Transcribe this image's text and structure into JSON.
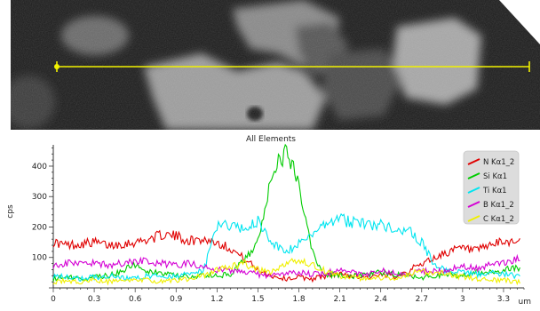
{
  "chart_data": {
    "type": "line",
    "title": "All Elements",
    "xlabel": "um",
    "ylabel": "cps",
    "xlim": [
      0,
      3.45
    ],
    "ylim": [
      0,
      470
    ],
    "xticks": [
      "0",
      "0.3",
      "0.6",
      "0.9",
      "1.2",
      "1.5",
      "1.8",
      "2.1",
      "2.4",
      "2.7",
      "3",
      "3.3"
    ],
    "yticks": [
      "100",
      "200",
      "300",
      "400"
    ],
    "grid": false,
    "legend_position": "top-right",
    "series": [
      {
        "name": "N Kα1_2",
        "color": "#e00000",
        "x": [
          0,
          0.1,
          0.2,
          0.3,
          0.4,
          0.5,
          0.6,
          0.7,
          0.8,
          0.9,
          1.0,
          1.1,
          1.2,
          1.3,
          1.4,
          1.5,
          1.6,
          1.7,
          1.8,
          1.9,
          2.0,
          2.1,
          2.2,
          2.3,
          2.4,
          2.5,
          2.6,
          2.7,
          2.8,
          2.9,
          3.0,
          3.1,
          3.2,
          3.3,
          3.4
        ],
        "y": [
          150,
          140,
          145,
          150,
          140,
          145,
          150,
          160,
          175,
          170,
          155,
          160,
          150,
          130,
          95,
          60,
          40,
          30,
          35,
          30,
          40,
          45,
          40,
          35,
          40,
          40,
          55,
          80,
          100,
          120,
          130,
          120,
          140,
          150,
          155
        ]
      },
      {
        "name": "Si Kα1",
        "color": "#00cc00",
        "x": [
          0,
          0.1,
          0.2,
          0.3,
          0.4,
          0.5,
          0.6,
          0.7,
          0.8,
          0.9,
          1.0,
          1.1,
          1.2,
          1.3,
          1.4,
          1.5,
          1.55,
          1.6,
          1.65,
          1.7,
          1.75,
          1.8,
          1.85,
          1.9,
          1.95,
          2.0,
          2.1,
          2.2,
          2.3,
          2.4,
          2.5,
          2.6,
          2.7,
          2.8,
          2.9,
          3.0,
          3.1,
          3.2,
          3.3,
          3.4
        ],
        "y": [
          30,
          35,
          30,
          35,
          40,
          55,
          75,
          55,
          45,
          40,
          35,
          40,
          40,
          45,
          90,
          150,
          250,
          370,
          420,
          440,
          410,
          330,
          230,
          120,
          70,
          45,
          40,
          40,
          45,
          50,
          45,
          40,
          35,
          40,
          45,
          40,
          50,
          55,
          60,
          65
        ]
      },
      {
        "name": "Ti Kα1",
        "color": "#00e5f0",
        "x": [
          0,
          0.1,
          0.2,
          0.3,
          0.4,
          0.5,
          0.6,
          0.7,
          0.8,
          0.9,
          1.0,
          1.1,
          1.2,
          1.3,
          1.4,
          1.5,
          1.6,
          1.7,
          1.8,
          1.85,
          1.9,
          2.0,
          2.1,
          2.2,
          2.3,
          2.4,
          2.5,
          2.6,
          2.7,
          2.8,
          2.9,
          3.0,
          3.1,
          3.2,
          3.3,
          3.4
        ],
        "y": [
          40,
          35,
          30,
          35,
          40,
          35,
          30,
          40,
          35,
          40,
          45,
          55,
          200,
          210,
          190,
          220,
          150,
          110,
          150,
          160,
          170,
          220,
          225,
          215,
          210,
          205,
          200,
          190,
          150,
          70,
          55,
          50,
          45,
          50,
          45,
          40
        ]
      },
      {
        "name": "B Kα1_2",
        "color": "#d400d4",
        "x": [
          0,
          0.1,
          0.2,
          0.3,
          0.4,
          0.5,
          0.6,
          0.7,
          0.8,
          0.9,
          1.0,
          1.1,
          1.2,
          1.3,
          1.4,
          1.5,
          1.6,
          1.7,
          1.8,
          1.9,
          2.0,
          2.1,
          2.2,
          2.3,
          2.4,
          2.5,
          2.6,
          2.7,
          2.8,
          2.9,
          3.0,
          3.1,
          3.2,
          3.3,
          3.4
        ],
        "y": [
          75,
          80,
          85,
          80,
          75,
          80,
          90,
          85,
          80,
          75,
          80,
          70,
          60,
          55,
          50,
          45,
          40,
          45,
          50,
          45,
          50,
          55,
          50,
          45,
          55,
          50,
          45,
          55,
          55,
          60,
          70,
          65,
          75,
          85,
          95
        ]
      },
      {
        "name": "C Kα1_2",
        "color": "#f0f000",
        "x": [
          0,
          0.1,
          0.2,
          0.3,
          0.4,
          0.5,
          0.6,
          0.7,
          0.8,
          0.9,
          1.0,
          1.1,
          1.2,
          1.3,
          1.4,
          1.5,
          1.6,
          1.7,
          1.8,
          1.9,
          2.0,
          2.1,
          2.2,
          2.3,
          2.4,
          2.5,
          2.6,
          2.7,
          2.8,
          2.9,
          3.0,
          3.1,
          3.2,
          3.3,
          3.4
        ],
        "y": [
          20,
          25,
          20,
          25,
          20,
          25,
          30,
          25,
          20,
          25,
          30,
          40,
          60,
          70,
          80,
          60,
          50,
          80,
          90,
          75,
          55,
          40,
          35,
          30,
          35,
          30,
          45,
          55,
          50,
          45,
          35,
          30,
          25,
          25,
          20
        ]
      }
    ]
  }
}
